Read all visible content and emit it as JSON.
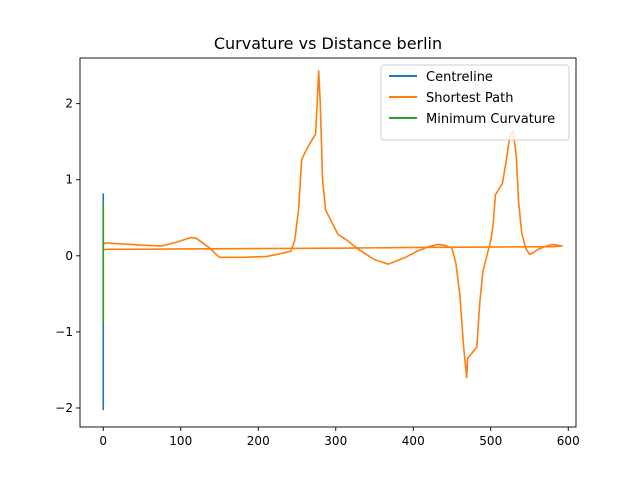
{
  "chart_data": {
    "type": "line",
    "title": "Curvature vs Distance berlin",
    "xlabel": "",
    "ylabel": "",
    "xlim": [
      -30,
      610
    ],
    "ylim": [
      -2.25,
      2.6
    ],
    "x_ticks": [
      0,
      100,
      200,
      300,
      400,
      500,
      600
    ],
    "y_ticks": [
      -2,
      -1,
      0,
      1,
      2
    ],
    "y_tick_labels": [
      "−2",
      "−1",
      "0",
      "1",
      "2"
    ],
    "grid": false,
    "legend": {
      "placement": "top-right"
    },
    "series": [
      {
        "name": "Centreline",
        "color": "#1f77b4",
        "x": [
          0,
          0,
          0,
          0,
          0,
          0,
          0,
          0
        ],
        "y": [
          0.82,
          0.3,
          -0.2,
          -0.6,
          -1.0,
          -1.5,
          -2.02,
          0.1
        ]
      },
      {
        "name": "Shortest Path",
        "color": "#ff7f0e",
        "x": [
          0,
          3,
          20,
          50,
          75,
          95,
          113,
          120,
          135,
          150,
          180,
          210,
          225,
          242,
          247,
          252,
          256,
          260,
          268,
          274,
          276,
          278,
          280,
          283,
          287,
          292,
          297,
          303,
          308,
          315,
          330,
          350,
          368,
          380,
          390,
          405,
          420,
          432,
          440,
          450,
          455,
          460,
          465,
          469,
          470,
          474,
          478,
          482,
          486,
          490,
          495,
          500,
          503,
          506,
          510,
          515,
          520,
          525,
          529,
          533,
          536,
          540,
          545,
          550,
          555,
          560,
          570,
          580,
          592,
          592,
          580,
          500,
          400,
          300,
          200,
          100,
          20,
          5,
          0
        ],
        "y": [
          0.15,
          0.17,
          0.16,
          0.14,
          0.13,
          0.18,
          0.24,
          0.23,
          0.12,
          -0.02,
          -0.02,
          -0.01,
          0.02,
          0.06,
          0.2,
          0.6,
          1.26,
          1.35,
          1.5,
          1.6,
          2.0,
          2.43,
          2.0,
          1.0,
          0.6,
          0.5,
          0.4,
          0.28,
          0.25,
          0.2,
          0.08,
          -0.05,
          -0.11,
          -0.06,
          -0.02,
          0.06,
          0.12,
          0.15,
          0.14,
          0.1,
          -0.1,
          -0.5,
          -1.2,
          -1.6,
          -1.35,
          -1.3,
          -1.25,
          -1.2,
          -0.6,
          -0.2,
          0.0,
          0.2,
          0.4,
          0.8,
          0.87,
          0.95,
          1.25,
          1.6,
          1.63,
          1.3,
          0.7,
          0.3,
          0.1,
          0.02,
          0.04,
          0.08,
          0.12,
          0.15,
          0.13,
          0.13,
          0.12,
          0.115,
          0.11,
          0.1,
          0.095,
          0.09,
          0.085,
          0.085,
          0.08
        ]
      },
      {
        "name": "Minimum Curvature",
        "color": "#2ca02c",
        "x": [
          0,
          0,
          0,
          0,
          0,
          0,
          0
        ],
        "y": [
          0.7,
          0.4,
          0.1,
          -0.3,
          -0.6,
          -0.88,
          0.2
        ]
      }
    ]
  }
}
